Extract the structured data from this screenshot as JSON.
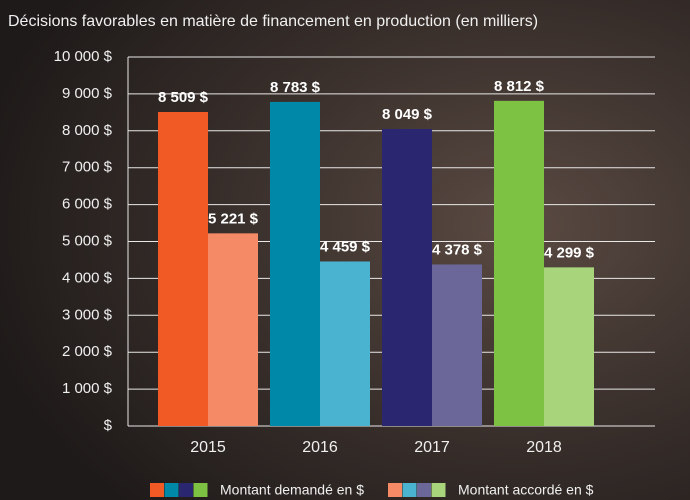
{
  "chart_data": {
    "type": "bar",
    "title": "Décisions favorables en matière de financement en production (en milliers)",
    "categories": [
      "2015",
      "2016",
      "2017",
      "2018"
    ],
    "series": [
      {
        "name": "Montant demandé en $",
        "colors": [
          "#f15a24",
          "#0088a8",
          "#2b2670",
          "#7dc242"
        ],
        "values": [
          8509,
          8783,
          8049,
          8812
        ],
        "value_labels": [
          "8 509 $",
          "8 783 $",
          "8 049 $",
          "8 812 $"
        ]
      },
      {
        "name": "Montant accordé en $",
        "colors": [
          "#f58b66",
          "#4ab3cf",
          "#6b6799",
          "#a8d47c"
        ],
        "values": [
          5221,
          4459,
          4378,
          4299
        ],
        "value_labels": [
          "5 221 $",
          "4 459 $",
          "4 378 $",
          "4 299 $"
        ]
      }
    ],
    "ylim": [
      0,
      10000
    ],
    "yticks": [
      {
        "value": 0,
        "label": "$"
      },
      {
        "value": 1000,
        "label": "1 000 $"
      },
      {
        "value": 2000,
        "label": "2 000 $"
      },
      {
        "value": 3000,
        "label": "3 000 $"
      },
      {
        "value": 4000,
        "label": "4 000 $"
      },
      {
        "value": 5000,
        "label": "5 000 $"
      },
      {
        "value": 6000,
        "label": "6 000 $"
      },
      {
        "value": 7000,
        "label": "7 000 $"
      },
      {
        "value": 8000,
        "label": "8 000 $"
      },
      {
        "value": 9000,
        "label": "9 000 $"
      },
      {
        "value": 10000,
        "label": "10 000 $"
      }
    ],
    "grid": true
  }
}
